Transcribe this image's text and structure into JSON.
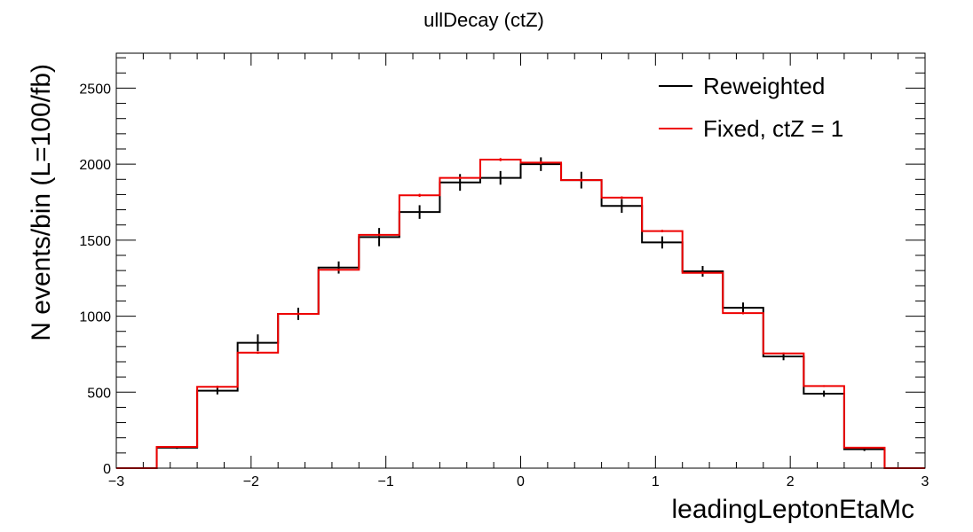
{
  "chart_data": {
    "type": "histogram",
    "title": "ullDecay (ctZ)",
    "xlabel": "leadingLeptonEtaMc",
    "ylabel": "N events/bin (L=100/fb)",
    "xlim": [
      -3,
      3
    ],
    "ylim": [
      0,
      2730
    ],
    "x_ticks": [
      -3,
      -2,
      -1,
      0,
      1,
      2,
      3
    ],
    "x_tick_labels": [
      "−3",
      "−2",
      "−1",
      "0",
      "1",
      "2",
      "3"
    ],
    "y_ticks": [
      0,
      500,
      1000,
      1500,
      2000,
      2500
    ],
    "y_tick_labels": [
      "0",
      "500",
      "1000",
      "1500",
      "2000",
      "2500"
    ],
    "legend_position": "top-right",
    "bin_edges": [
      -3.0,
      -2.7,
      -2.4,
      -2.1,
      -1.8,
      -1.5,
      -1.2,
      -0.9,
      -0.6,
      -0.3,
      0.0,
      0.3,
      0.6,
      0.9,
      1.2,
      1.5,
      1.8,
      2.1,
      2.4,
      2.7,
      3.0
    ],
    "series": [
      {
        "name": "Reweighted",
        "color": "#000000",
        "values": [
          0,
          135,
          510,
          825,
          1015,
          1320,
          1520,
          1685,
          1880,
          1910,
          2000,
          1895,
          1725,
          1485,
          1295,
          1055,
          735,
          490,
          125,
          0
        ],
        "errors": [
          0,
          8,
          25,
          55,
          40,
          40,
          60,
          45,
          55,
          45,
          45,
          55,
          45,
          40,
          35,
          35,
          25,
          20,
          12,
          0
        ]
      },
      {
        "name": "Fixed, ctZ = 1",
        "color": "#ee0000",
        "values": [
          0,
          140,
          535,
          760,
          1015,
          1305,
          1535,
          1795,
          1910,
          2030,
          2010,
          1895,
          1780,
          1560,
          1285,
          1020,
          755,
          540,
          135,
          0
        ],
        "errors": [
          0,
          4,
          8,
          8,
          8,
          8,
          8,
          10,
          8,
          10,
          10,
          10,
          8,
          8,
          8,
          8,
          6,
          6,
          4,
          0
        ]
      }
    ]
  }
}
